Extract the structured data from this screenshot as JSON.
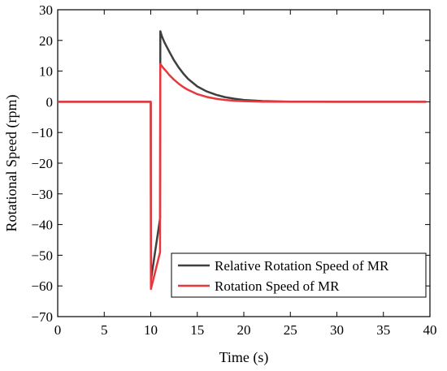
{
  "chart_data": {
    "type": "line",
    "title": "",
    "xlabel": "Time (s)",
    "ylabel": "Rotational Speed (rpm)",
    "xlim": [
      0,
      40
    ],
    "ylim": [
      -70,
      30
    ],
    "x_ticks": [
      0,
      5,
      10,
      15,
      20,
      25,
      30,
      35,
      40
    ],
    "y_ticks": [
      30,
      20,
      10,
      0,
      -10,
      -20,
      -30,
      -40,
      -50,
      -60,
      -70
    ],
    "x_tick_labels": [
      "0",
      "5",
      "10",
      "15",
      "20",
      "25",
      "30",
      "35",
      "40"
    ],
    "y_tick_labels": [
      "30",
      "20",
      "10",
      "0",
      "−10",
      "−20",
      "−30",
      "−40",
      "−50",
      "−60",
      "−70"
    ],
    "grid": false,
    "legend_position": "bottom-right",
    "series": [
      {
        "name": "Relative Rotation Speed of MR",
        "color": "#3f3f3f",
        "x": [
          0,
          10,
          10.02,
          11,
          11.03,
          11.2,
          11.5,
          12,
          12.5,
          13,
          13.5,
          14,
          15,
          16,
          17,
          18,
          19,
          20,
          22,
          25,
          30,
          35,
          39.6
        ],
        "y": [
          0,
          0,
          -58,
          -38,
          23,
          21.3,
          19.2,
          16.3,
          13.5,
          11.2,
          9.2,
          7.5,
          5.0,
          3.4,
          2.3,
          1.5,
          1.0,
          0.6,
          0.25,
          0.05,
          0,
          0,
          0
        ]
      },
      {
        "name": "Rotation Speed of MR",
        "color": "#e8383d",
        "x": [
          0,
          10,
          10.02,
          11,
          11.03,
          11.3,
          11.7,
          12,
          12.5,
          13,
          13.5,
          14,
          15,
          16,
          17,
          18,
          19,
          20,
          22,
          25,
          30,
          35,
          39.6
        ],
        "y": [
          0,
          0,
          -61,
          -49,
          12.3,
          11.2,
          9.8,
          8.7,
          7.2,
          5.9,
          4.8,
          3.9,
          2.5,
          1.6,
          1.0,
          0.6,
          0.35,
          0.2,
          0.05,
          0,
          0,
          0,
          0
        ]
      }
    ]
  }
}
